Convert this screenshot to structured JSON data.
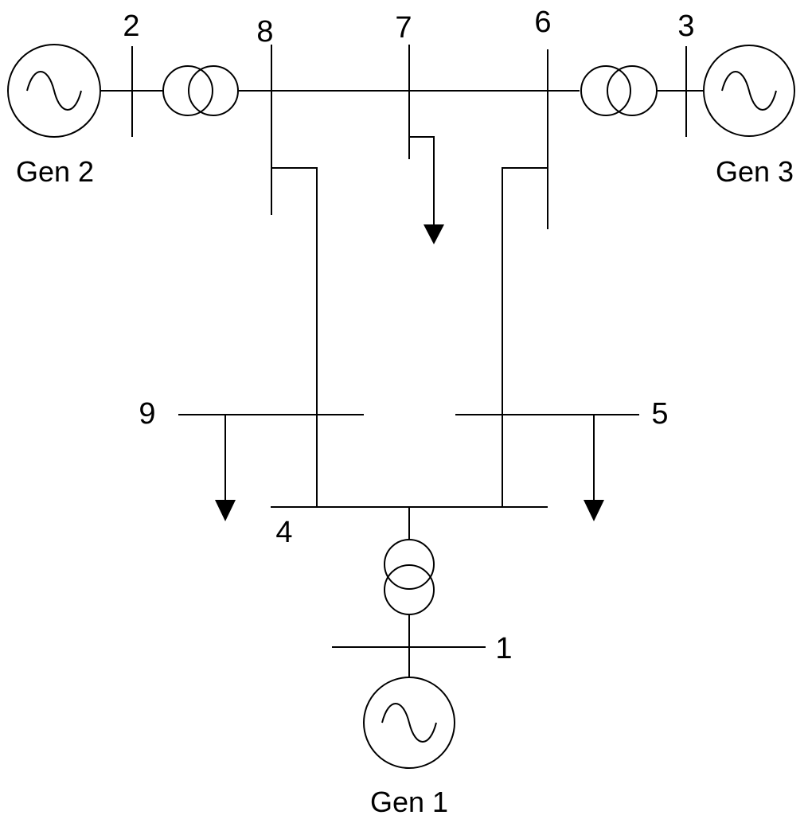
{
  "buses": {
    "b1": "1",
    "b2": "2",
    "b3": "3",
    "b4": "4",
    "b5": "5",
    "b6": "6",
    "b7": "7",
    "b8": "8",
    "b9": "9"
  },
  "generators": {
    "gen1": "Gen 1",
    "gen2": "Gen 2",
    "gen3": "Gen 3"
  }
}
